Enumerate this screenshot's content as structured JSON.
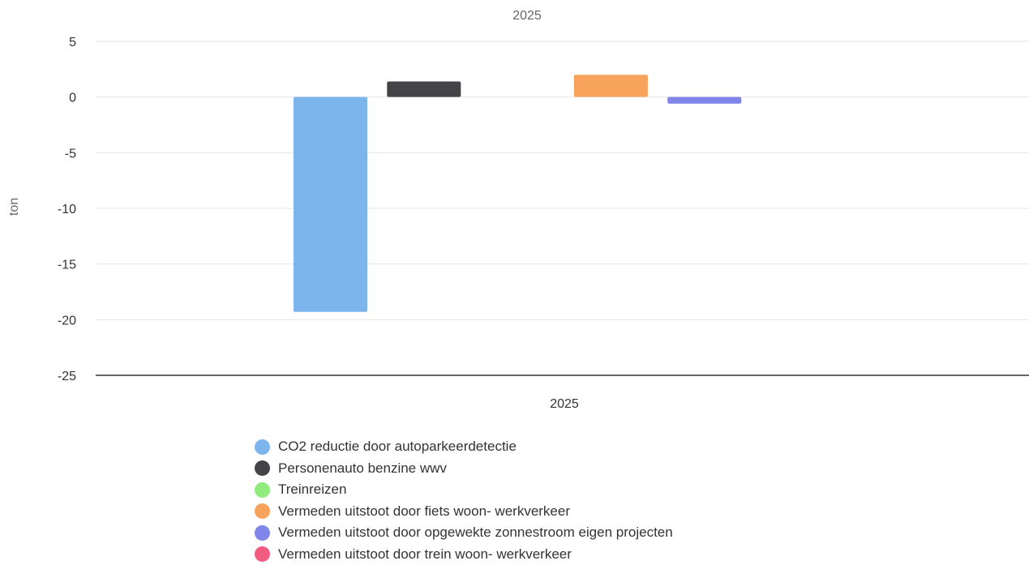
{
  "chart_data": {
    "type": "bar",
    "title": "2025",
    "categories": [
      "2025"
    ],
    "ylabel": "ton",
    "ylim": [
      -25,
      5
    ],
    "yticks": [
      5,
      0,
      -5,
      -10,
      -15,
      -20,
      -25
    ],
    "grid": true,
    "legend_position": "bottom-left",
    "series": [
      {
        "name": "CO2 reductie door autoparkeerdetectie",
        "values": [
          -19.3
        ],
        "color": "#7cb5ec"
      },
      {
        "name": "Personenauto benzine wwv",
        "values": [
          1.4
        ],
        "color": "#434348"
      },
      {
        "name": "Treinreizen",
        "values": [
          0
        ],
        "color": "#90ed7d"
      },
      {
        "name": "Vermeden uitstoot door fiets woon- werkverkeer",
        "values": [
          2.0
        ],
        "color": "#f7a35c"
      },
      {
        "name": "Vermeden uitstoot door opgewekte zonnestroom eigen projecten",
        "values": [
          -0.6
        ],
        "color": "#8085e9"
      },
      {
        "name": "Vermeden uitstoot door trein woon- werkverkeer",
        "values": [
          0
        ],
        "color": "#f15c80"
      }
    ]
  }
}
